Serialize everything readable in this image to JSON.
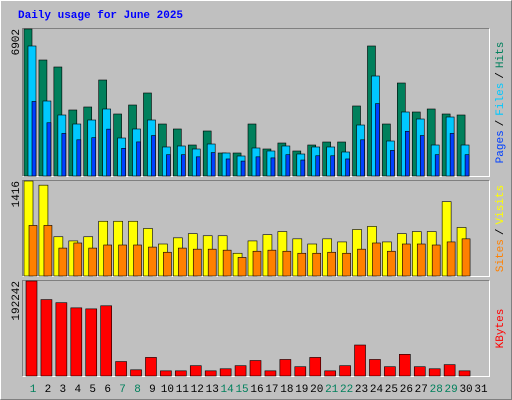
{
  "title": "Daily usage for June 2025",
  "legend_separator": "/",
  "highlight_color": "#00805c",
  "highlighted": [
    0,
    6,
    7,
    13,
    14,
    20,
    21,
    27,
    28
  ],
  "chart_data": [
    {
      "type": "bar",
      "ylim": [
        0,
        6902
      ],
      "yticks": [
        6902
      ],
      "series": [
        {
          "name": "Hits",
          "color": "#00805c",
          "values": [
            6902,
            5446,
            5118,
            3099,
            3240,
            4507,
            2911,
            3333,
            3897,
            2441,
            2207,
            1455,
            2113,
            1080,
            1080,
            2441,
            1268,
            1549,
            1174,
            1455,
            1596,
            1596,
            3287,
            6104,
            2441,
            4366,
            3005,
            3146,
            2911,
            2864,
            null
          ]
        },
        {
          "name": "Files",
          "color": "#00c8ff",
          "values": [
            6104,
            3521,
            2864,
            2441,
            2629,
            3146,
            1784,
            2207,
            2629,
            1362,
            1409,
            1268,
            1502,
            1080,
            939,
            1315,
            1174,
            1409,
            1033,
            1362,
            1362,
            1127,
            2394,
            4695,
            1643,
            3005,
            2676,
            1455,
            2770,
            1455,
            null
          ]
        },
        {
          "name": "Pages",
          "color": "#0040ff",
          "values": [
            3500,
            2500,
            2000,
            1700,
            1800,
            2200,
            1300,
            1600,
            1900,
            1000,
            1000,
            900,
            1100,
            800,
            700,
            900,
            850,
            1000,
            750,
            950,
            950,
            800,
            1700,
            3400,
            1200,
            2100,
            1900,
            1000,
            2000,
            1000,
            null
          ]
        }
      ]
    },
    {
      "type": "bar",
      "ylim": [
        0,
        1416
      ],
      "yticks": [
        1416
      ],
      "series": [
        {
          "name": "Visits",
          "color": "#ffff00",
          "values": [
            1416,
            1354,
            585,
            523,
            585,
            816,
            816,
            816,
            708,
            477,
            569,
            631,
            600,
            600,
            339,
            523,
            616,
            662,
            554,
            477,
            554,
            508,
            693,
            739,
            508,
            631,
            662,
            662,
            1108,
            723,
            null
          ]
        },
        {
          "name": "Sites",
          "color": "#ff8000",
          "values": [
            754,
            754,
            416,
            492,
            416,
            462,
            462,
            462,
            431,
            354,
            416,
            400,
            400,
            385,
            277,
            369,
            385,
            369,
            339,
            339,
            354,
            339,
            400,
            492,
            369,
            477,
            477,
            462,
            508,
            554,
            null
          ]
        }
      ]
    },
    {
      "type": "bar",
      "ylim": [
        0,
        192242
      ],
      "yticks": [
        192242
      ],
      "categories": [
        "1",
        "2",
        "3",
        "4",
        "5",
        "6",
        "7",
        "8",
        "9",
        "10",
        "11",
        "12",
        "13",
        "14",
        "15",
        "16",
        "17",
        "18",
        "19",
        "20",
        "21",
        "22",
        "23",
        "24",
        "25",
        "26",
        "27",
        "28",
        "29",
        "30",
        "31"
      ],
      "series": [
        {
          "name": "KBytes",
          "color": "#ff0000",
          "values": [
            192242,
            154630,
            148362,
            137914,
            135824,
            142093,
            29254,
            12538,
            37613,
            10448,
            10448,
            20896,
            10448,
            14627,
            20896,
            31344,
            10448,
            33434,
            18806,
            37613,
            10448,
            20896,
            62688,
            33434,
            18806,
            43882,
            18806,
            14627,
            22986,
            10448,
            null
          ]
        }
      ]
    }
  ]
}
